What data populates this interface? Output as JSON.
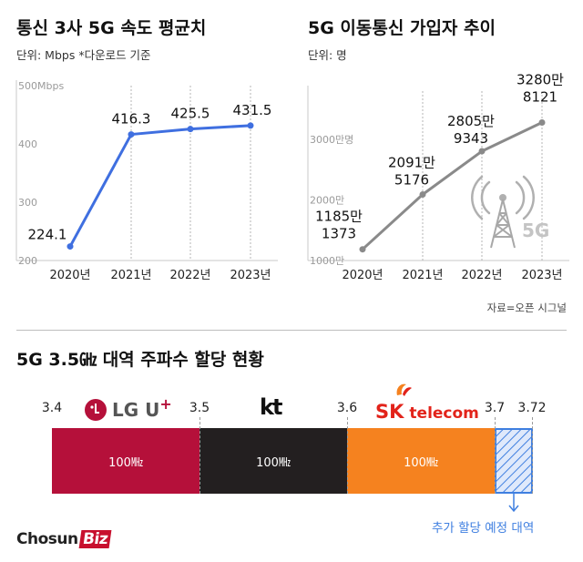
{
  "charts": {
    "speed": {
      "title": "통신 3사  5G 속도 평균치",
      "subtitle": "단위: Mbps  *다운로드 기준"
    },
    "subs": {
      "title": "5G 이동통신 가입자 추이",
      "subtitle": "단위: 명",
      "source": "자료=오픈 시그널"
    }
  },
  "chart_data": [
    {
      "type": "line",
      "title": "통신 3사  5G 속도 평균치",
      "unit_note": "단위: Mbps  *다운로드 기준",
      "categories": [
        "2020년",
        "2021년",
        "2022년",
        "2023년"
      ],
      "values": [
        224.1,
        416.3,
        425.5,
        431.5
      ],
      "value_labels": [
        "224.1",
        "416.3",
        "425.5",
        "431.5"
      ],
      "yticks": [
        200,
        300,
        400,
        500
      ],
      "ytick_labels": [
        "200",
        "300",
        "400",
        "500Mbps"
      ],
      "ylim": [
        200,
        500
      ],
      "color": "#3f6fe0",
      "grid": "vertical-dashed"
    },
    {
      "type": "line",
      "title": "5G 이동통신 가입자 추이",
      "unit_note": "단위: 명",
      "categories": [
        "2020년",
        "2021년",
        "2022년",
        "2023년"
      ],
      "values": [
        11851373,
        20915176,
        28059343,
        32808121
      ],
      "value_labels": [
        [
          "1185만",
          "1373"
        ],
        [
          "2091만",
          "5176"
        ],
        [
          "2805만",
          "9343"
        ],
        [
          "3280만",
          "8121"
        ]
      ],
      "yticks": [
        10000000,
        20000000,
        30000000
      ],
      "ytick_labels": [
        "1000만",
        "2000만",
        "3000만명"
      ],
      "ylim": [
        10000000,
        38000000
      ],
      "color": "#8a8a8a",
      "source": "자료=오픈 시그널",
      "grid": "vertical-dashed"
    }
  ],
  "spectrum": {
    "title": "5G 3.5㎓ 대역 주파수 할당 현황",
    "freq_labels": [
      "3.4",
      "3.5",
      "3.6",
      "3.7",
      "3.72"
    ],
    "segments": [
      {
        "carrier": "LG U+",
        "label": "100㎒",
        "color": "#b5103a"
      },
      {
        "carrier": "kt",
        "label": "100㎒",
        "color": "#231f20"
      },
      {
        "carrier": "SK telecom",
        "label": "100㎒",
        "color": "#f5821f"
      }
    ],
    "pending_color": "#3f7fe0",
    "pending_label": "추가 할당 예정 대역",
    "logos": {
      "lgu": "LG U",
      "lgu_plus": "+",
      "kt": "kt",
      "sk_1": "SK",
      "sk_2": "telecom"
    }
  },
  "brand": {
    "name_1": "Chosun",
    "name_2": "Biz"
  },
  "icon": {
    "tower_badge": "5G"
  }
}
